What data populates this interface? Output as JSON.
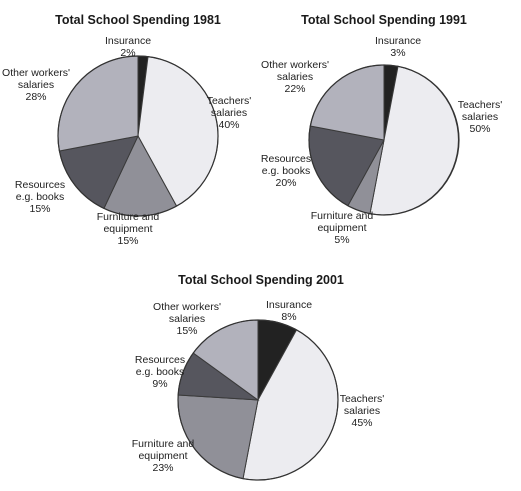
{
  "colors": {
    "Insurance": "#222222",
    "Teachers' salaries": "#ececf0",
    "Furniture and equipment": "#909098",
    "Resources e.g. books": "#56565e",
    "Other workers' salaries": "#b2b2bc"
  },
  "chart_data": [
    {
      "type": "pie",
      "title": "Total School Spending 1981",
      "slices": [
        {
          "label": "Insurance",
          "value": 2,
          "value_label": "2%",
          "label_lines": [
            "Insurance"
          ]
        },
        {
          "label": "Teachers' salaries",
          "value": 40,
          "value_label": "40%",
          "label_lines": [
            "Teachers'",
            "salaries"
          ]
        },
        {
          "label": "Furniture and equipment",
          "value": 15,
          "value_label": "15%",
          "label_lines": [
            "Furniture and",
            "equipment"
          ]
        },
        {
          "label": "Resources e.g. books",
          "value": 15,
          "value_label": "15%",
          "label_lines": [
            "Resources",
            "e.g. books"
          ]
        },
        {
          "label": "Other workers' salaries",
          "value": 28,
          "value_label": "28%",
          "label_lines": [
            "Other workers'",
            "salaries"
          ]
        }
      ]
    },
    {
      "type": "pie",
      "title": "Total School Spending 1991",
      "slices": [
        {
          "label": "Insurance",
          "value": 3,
          "value_label": "3%",
          "label_lines": [
            "Insurance"
          ]
        },
        {
          "label": "Teachers' salaries",
          "value": 50,
          "value_label": "50%",
          "label_lines": [
            "Teachers'",
            "salaries"
          ]
        },
        {
          "label": "Furniture and equipment",
          "value": 5,
          "value_label": "5%",
          "label_lines": [
            "Furniture and",
            "equipment"
          ]
        },
        {
          "label": "Resources e.g. books",
          "value": 20,
          "value_label": "20%",
          "label_lines": [
            "Resources",
            "e.g. books"
          ]
        },
        {
          "label": "Other workers' salaries",
          "value": 22,
          "value_label": "22%",
          "label_lines": [
            "Other workers'",
            "salaries"
          ]
        }
      ]
    },
    {
      "type": "pie",
      "title": "Total School Spending 2001",
      "slices": [
        {
          "label": "Insurance",
          "value": 8,
          "value_label": "8%",
          "label_lines": [
            "Insurance"
          ]
        },
        {
          "label": "Teachers' salaries",
          "value": 45,
          "value_label": "45%",
          "label_lines": [
            "Teachers'",
            "salaries"
          ]
        },
        {
          "label": "Furniture and equipment",
          "value": 23,
          "value_label": "23%",
          "label_lines": [
            "Furniture and",
            "equipment"
          ]
        },
        {
          "label": "Resources e.g. books",
          "value": 9,
          "value_label": "9%",
          "label_lines": [
            "Resources",
            "e.g. books"
          ]
        },
        {
          "label": "Other workers' salaries",
          "value": 15,
          "value_label": "15%",
          "label_lines": [
            "Other workers'",
            "salaries"
          ]
        }
      ]
    }
  ]
}
